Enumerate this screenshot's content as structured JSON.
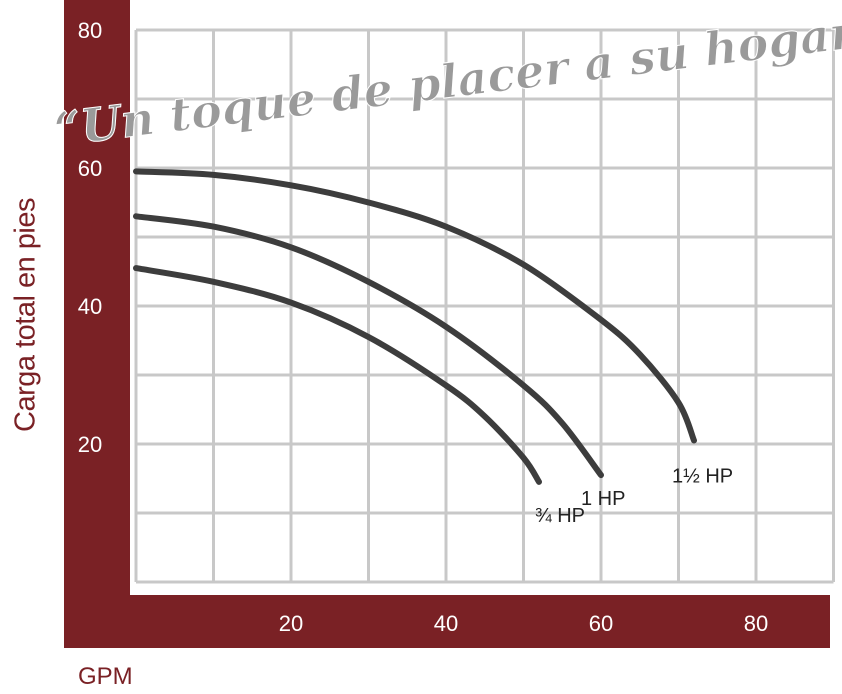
{
  "chart_data": {
    "type": "line",
    "title": "",
    "xlabel": "GPM",
    "ylabel": "Carga total en pies",
    "xlim": [
      0,
      90
    ],
    "ylim": [
      0,
      80
    ],
    "x_ticks": [
      20,
      40,
      60,
      80
    ],
    "y_ticks": [
      80,
      60,
      40,
      20
    ],
    "grid": true,
    "watermark": "“Un toque de placer a su hogar”",
    "colors": {
      "frame": "#7a2125",
      "grid": "#c8c8c8",
      "line": "#3d3d3d",
      "text": "#222222"
    },
    "series": [
      {
        "name": "1½ HP",
        "x": [
          0,
          10,
          20,
          30,
          40,
          50,
          60,
          65,
          70,
          72
        ],
        "y": [
          59.5,
          59,
          57.5,
          55,
          51.5,
          46,
          38,
          33,
          26,
          20.5
        ]
      },
      {
        "name": "1 HP",
        "x": [
          0,
          10,
          20,
          30,
          40,
          50,
          55,
          60
        ],
        "y": [
          53,
          51.5,
          48.5,
          43.5,
          37,
          28.5,
          23,
          15.5
        ]
      },
      {
        "name": "¾ HP",
        "x": [
          0,
          10,
          20,
          30,
          40,
          45,
          50,
          52
        ],
        "y": [
          45.5,
          43.5,
          40.5,
          35.5,
          28.5,
          24,
          18,
          14.5
        ]
      }
    ]
  }
}
